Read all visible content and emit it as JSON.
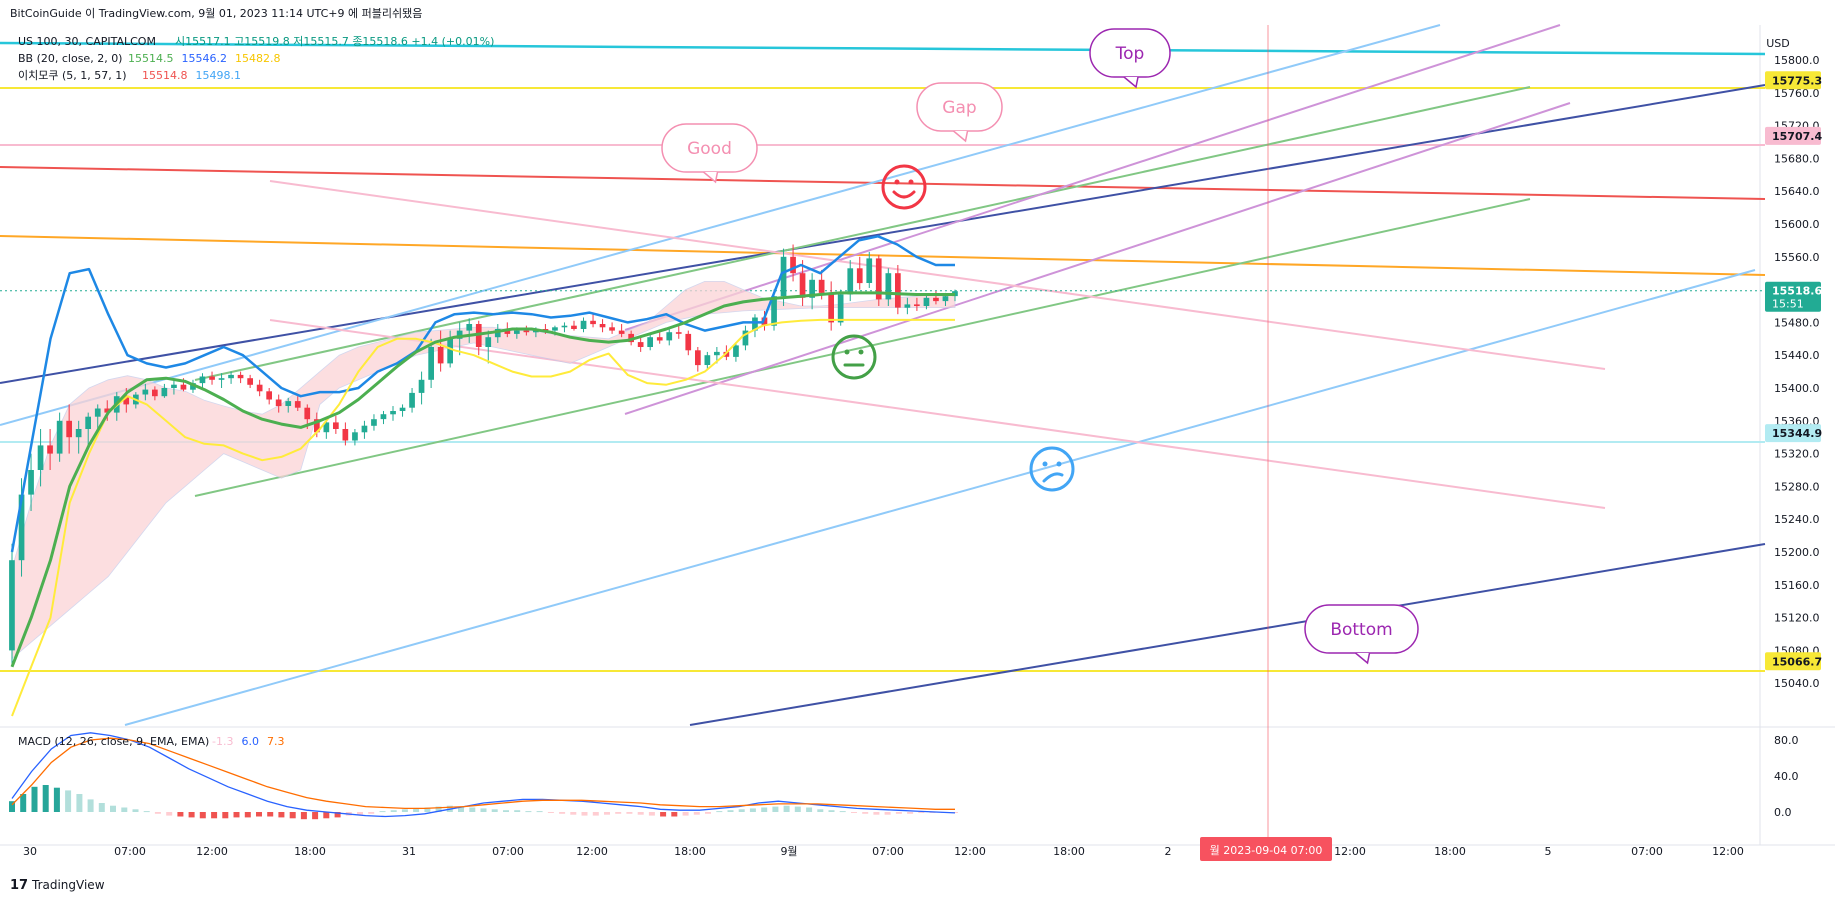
{
  "header": {
    "publish_line": "BitCoinGuide 이 TradingView.com, 9월 01, 2023 11:14 UTC+9 에 퍼블리쉬됐음"
  },
  "legend": {
    "symbol": "US 100, 30, CAPITALCOM",
    "ohlc": [
      {
        "label": "시",
        "value": "15517.1"
      },
      {
        "label": "고",
        "value": "15519.8"
      },
      {
        "label": "저",
        "value": "15515.7"
      },
      {
        "label": "종",
        "value": "15518.6"
      }
    ],
    "change": "+1.4 (+0.01%)",
    "bb_label": "BB (20, close, 2, 0)",
    "bb_values": [
      "15514.5",
      "15546.2",
      "15482.8"
    ],
    "ichimoku_label": "이치모쿠 (5, 1, 57, 1)",
    "ichimoku_values": [
      "15514.8",
      "15498.1"
    ],
    "macd_label": "MACD (12, 26, close, 9, EMA, EMA)",
    "macd_values": [
      "-1.3",
      "6.0",
      "7.3"
    ]
  },
  "price_axis": {
    "currency": "USD",
    "ticks": [
      "15800.0",
      "15760.0",
      "15720.0",
      "15680.0",
      "15640.0",
      "15600.0",
      "15560.0",
      "15520.0",
      "15480.0",
      "15440.0",
      "15400.0",
      "15360.0",
      "15320.0",
      "15280.0",
      "15240.0",
      "15200.0",
      "15160.0",
      "15120.0",
      "15080.0",
      "15040.0"
    ],
    "price_labels": [
      {
        "text": "15775.3",
        "bg": "#f7e836"
      },
      {
        "text": "15707.4",
        "bg": "#f8bbd0"
      },
      {
        "text": "15518.6",
        "sub": "15:51",
        "bg": "#22ab94"
      },
      {
        "text": "15344.9",
        "bg": "#b2ebf2"
      },
      {
        "text": "15066.7",
        "bg": "#f7e836"
      }
    ]
  },
  "macd_axis": {
    "ticks": [
      "80.0",
      "40.0",
      "0.0"
    ]
  },
  "time_axis": {
    "ticks": [
      "30",
      "07:00",
      "12:00",
      "18:00",
      "31",
      "07:00",
      "12:00",
      "18:00",
      "9월",
      "07:00",
      "12:00",
      "18:00",
      "2",
      "12:00",
      "18:00",
      "5",
      "07:00",
      "12:00"
    ],
    "cursor_label": "월 2023-09-04   07:00"
  },
  "callouts": {
    "top": "Top",
    "gap": "Gap",
    "good": "Good",
    "bottom": "Bottom"
  },
  "footer": {
    "brand": "TradingView"
  },
  "colors": {
    "up": "#22ab94",
    "down": "#f23645",
    "bb_basis": "#4caf50",
    "bb_upper": "#2962ff",
    "bb_lower": "#ffeb3b",
    "cloud": "#fbd3d6"
  },
  "chart_data": [
    {
      "type": "candlestick",
      "title": "US 100, 30, CAPITALCOM",
      "ylim": [
        15020,
        15830
      ],
      "ohlc": [
        [
          15080,
          15210,
          15060,
          15190
        ],
        [
          15190,
          15290,
          15170,
          15270
        ],
        [
          15270,
          15320,
          15250,
          15300
        ],
        [
          15300,
          15350,
          15280,
          15330
        ],
        [
          15330,
          15350,
          15300,
          15320
        ],
        [
          15320,
          15370,
          15310,
          15360
        ],
        [
          15360,
          15380,
          15320,
          15340
        ],
        [
          15340,
          15360,
          15320,
          15350
        ],
        [
          15350,
          15370,
          15330,
          15365
        ],
        [
          15365,
          15380,
          15350,
          15375
        ],
        [
          15375,
          15385,
          15360,
          15370
        ],
        [
          15370,
          15395,
          15360,
          15390
        ],
        [
          15390,
          15400,
          15370,
          15380
        ],
        [
          15380,
          15395,
          15375,
          15392
        ],
        [
          15392,
          15405,
          15385,
          15398
        ],
        [
          15398,
          15402,
          15385,
          15390
        ],
        [
          15390,
          15405,
          15388,
          15400
        ],
        [
          15400,
          15410,
          15392,
          15404
        ],
        [
          15404,
          15412,
          15396,
          15398
        ],
        [
          15398,
          15410,
          15394,
          15406
        ],
        [
          15406,
          15418,
          15400,
          15414
        ],
        [
          15414,
          15420,
          15404,
          15410
        ],
        [
          15410,
          15418,
          15400,
          15412
        ],
        [
          15412,
          15420,
          15405,
          15416
        ],
        [
          15416,
          15420,
          15406,
          15412
        ],
        [
          15412,
          15416,
          15400,
          15404
        ],
        [
          15404,
          15410,
          15390,
          15396
        ],
        [
          15396,
          15400,
          15380,
          15386
        ],
        [
          15386,
          15392,
          15370,
          15378
        ],
        [
          15378,
          15388,
          15370,
          15384
        ],
        [
          15384,
          15390,
          15372,
          15376
        ],
        [
          15376,
          15380,
          15350,
          15362
        ],
        [
          15362,
          15370,
          15340,
          15346
        ],
        [
          15346,
          15364,
          15338,
          15358
        ],
        [
          15358,
          15366,
          15344,
          15350
        ],
        [
          15350,
          15358,
          15330,
          15336
        ],
        [
          15336,
          15350,
          15330,
          15346
        ],
        [
          15346,
          15360,
          15338,
          15354
        ],
        [
          15354,
          15368,
          15348,
          15362
        ],
        [
          15362,
          15372,
          15356,
          15368
        ],
        [
          15368,
          15378,
          15360,
          15372
        ],
        [
          15372,
          15380,
          15365,
          15376
        ],
        [
          15376,
          15400,
          15370,
          15394
        ],
        [
          15394,
          15420,
          15380,
          15410
        ],
        [
          15410,
          15460,
          15400,
          15450
        ],
        [
          15450,
          15470,
          15420,
          15430
        ],
        [
          15430,
          15470,
          15425,
          15460
        ],
        [
          15460,
          15480,
          15440,
          15470
        ],
        [
          15470,
          15485,
          15455,
          15478
        ],
        [
          15478,
          15482,
          15440,
          15450
        ],
        [
          15450,
          15470,
          15430,
          15462
        ],
        [
          15462,
          15478,
          15455,
          15472
        ],
        [
          15472,
          15480,
          15462,
          15466
        ],
        [
          15466,
          15474,
          15460,
          15470
        ],
        [
          15470,
          15476,
          15464,
          15468
        ],
        [
          15468,
          15474,
          15462,
          15472
        ],
        [
          15472,
          15478,
          15466,
          15470
        ],
        [
          15470,
          15476,
          15464,
          15474
        ],
        [
          15474,
          15480,
          15468,
          15476
        ],
        [
          15476,
          15482,
          15470,
          15472
        ],
        [
          15472,
          15486,
          15468,
          15482
        ],
        [
          15482,
          15490,
          15474,
          15478
        ],
        [
          15478,
          15484,
          15468,
          15474
        ],
        [
          15474,
          15480,
          15466,
          15470
        ],
        [
          15470,
          15478,
          15462,
          15466
        ],
        [
          15466,
          15470,
          15452,
          15456
        ],
        [
          15456,
          15462,
          15444,
          15450
        ],
        [
          15450,
          15466,
          15446,
          15462
        ],
        [
          15462,
          15470,
          15454,
          15458
        ],
        [
          15458,
          15474,
          15452,
          15468
        ],
        [
          15468,
          15476,
          15460,
          15466
        ],
        [
          15466,
          15470,
          15440,
          15446
        ],
        [
          15446,
          15450,
          15420,
          15428
        ],
        [
          15428,
          15444,
          15422,
          15440
        ],
        [
          15440,
          15450,
          15430,
          15444
        ],
        [
          15444,
          15452,
          15434,
          15438
        ],
        [
          15438,
          15456,
          15432,
          15452
        ],
        [
          15452,
          15476,
          15446,
          15470
        ],
        [
          15470,
          15490,
          15462,
          15486
        ],
        [
          15486,
          15494,
          15470,
          15476
        ],
        [
          15476,
          15520,
          15470,
          15512
        ],
        [
          15512,
          15570,
          15500,
          15560
        ],
        [
          15560,
          15575,
          15530,
          15540
        ],
        [
          15540,
          15556,
          15500,
          15510
        ],
        [
          15510,
          15540,
          15496,
          15532
        ],
        [
          15532,
          15544,
          15508,
          15516
        ],
        [
          15516,
          15530,
          15470,
          15480
        ],
        [
          15480,
          15520,
          15476,
          15514
        ],
        [
          15514,
          15556,
          15506,
          15546
        ],
        [
          15546,
          15560,
          15520,
          15528
        ],
        [
          15528,
          15566,
          15522,
          15558
        ],
        [
          15558,
          15562,
          15500,
          15508
        ],
        [
          15508,
          15546,
          15500,
          15540
        ],
        [
          15540,
          15550,
          15490,
          15498
        ],
        [
          15498,
          15510,
          15490,
          15502
        ],
        [
          15502,
          15510,
          15494,
          15500
        ],
        [
          15500,
          15514,
          15496,
          15510
        ],
        [
          15510,
          15518,
          15502,
          15506
        ],
        [
          15506,
          15516,
          15500,
          15512
        ],
        [
          15512,
          15520,
          15506,
          15518
        ]
      ],
      "bb_upper": [
        15200,
        15330,
        15460,
        15540,
        15545,
        15490,
        15440,
        15430,
        15425,
        15430,
        15440,
        15450,
        15440,
        15420,
        15400,
        15390,
        15395,
        15395,
        15400,
        15420,
        15430,
        15445,
        15480,
        15490,
        15492,
        15490,
        15492,
        15490,
        15486,
        15488,
        15492,
        15486,
        15480,
        15484,
        15490,
        15478,
        15470,
        15475,
        15480,
        15480,
        15540,
        15550,
        15540,
        15560,
        15580,
        15585,
        15575,
        15560,
        15550,
        15550
      ],
      "bb_basis": [
        15060,
        15120,
        15190,
        15280,
        15330,
        15370,
        15395,
        15410,
        15412,
        15408,
        15398,
        15386,
        15372,
        15362,
        15356,
        15352,
        15360,
        15370,
        15386,
        15406,
        15426,
        15444,
        15456,
        15462,
        15465,
        15468,
        15472,
        15472,
        15468,
        15462,
        15458,
        15456,
        15458,
        15465,
        15472,
        15480,
        15490,
        15500,
        15505,
        15508,
        15510,
        15512,
        15514,
        15516,
        15516,
        15516,
        15515,
        15514,
        15514,
        15514
      ],
      "bb_lower": [
        15000,
        15060,
        15120,
        15260,
        15320,
        15370,
        15390,
        15380,
        15360,
        15340,
        15332,
        15330,
        15320,
        15312,
        15316,
        15326,
        15350,
        15380,
        15420,
        15450,
        15460,
        15460,
        15455,
        15446,
        15440,
        15430,
        15420,
        15414,
        15414,
        15420,
        15434,
        15442,
        15416,
        15406,
        15404,
        15410,
        15420,
        15440,
        15464,
        15476,
        15480,
        15482,
        15483,
        15483,
        15483,
        15483,
        15483,
        15483,
        15483,
        15483
      ],
      "ichimoku_cloud_top": [
        15180,
        15260,
        15330,
        15380,
        15400,
        15410,
        15415,
        15410,
        15400,
        15396,
        15385,
        15378,
        15372,
        15368,
        15380,
        15400,
        15420,
        15440,
        15450,
        15456,
        15462,
        15468,
        15470,
        15472,
        15474,
        15474,
        15470,
        15470,
        15466,
        15464,
        15462,
        15460,
        15470,
        15480,
        15500,
        15520,
        15530,
        15530,
        15520,
        15510,
        15505,
        15500,
        15500,
        15502,
        15505,
        15508,
        15510,
        15512,
        15514,
        15515
      ],
      "ichimoku_cloud_bottom": [
        15070,
        15090,
        15110,
        15130,
        15150,
        15170,
        15200,
        15230,
        15260,
        15280,
        15300,
        15320,
        15310,
        15300,
        15290,
        15300,
        15380,
        15400,
        15410,
        15420,
        15430,
        15440,
        15445,
        15450,
        15455,
        15450,
        15445,
        15440,
        15435,
        15430,
        15440,
        15450,
        15460,
        15470,
        15480,
        15485,
        15490,
        15492,
        15494,
        15495,
        15496,
        15497,
        15498,
        15498,
        15498,
        15498,
        15498,
        15498,
        15498,
        15498
      ],
      "macd_histogram": [
        12,
        20,
        28,
        30,
        27,
        24,
        20,
        14,
        10,
        7,
        5,
        3,
        1,
        -2,
        -4,
        -5,
        -6,
        -7,
        -7,
        -7,
        -6,
        -6,
        -5,
        -5,
        -6,
        -7,
        -8,
        -8,
        -7,
        -6,
        -4,
        -3,
        -2,
        1,
        2,
        3,
        4,
        5,
        6,
        7,
        6,
        5,
        4,
        3,
        2,
        2,
        1,
        1,
        -1,
        -2,
        -3,
        -4,
        -4,
        -3,
        -2,
        -2,
        -3,
        -4,
        -5,
        -5,
        -4,
        -3,
        -2,
        1,
        2,
        3,
        4,
        5,
        6,
        7,
        6,
        5,
        3,
        2,
        1,
        -1,
        -2,
        -3,
        -3,
        -2,
        -2,
        -1,
        -1,
        -1,
        -1
      ],
      "macd_line": [
        15,
        45,
        70,
        85,
        88,
        85,
        80,
        72,
        60,
        48,
        38,
        28,
        20,
        12,
        6,
        2,
        0,
        -2,
        -4,
        -5,
        -4,
        -2,
        2,
        6,
        10,
        12,
        14,
        14,
        13,
        12,
        10,
        8,
        6,
        3,
        2,
        2,
        4,
        6,
        10,
        12,
        10,
        8,
        6,
        4,
        3,
        2,
        1,
        0,
        -1
      ],
      "signal_line": [
        8,
        30,
        55,
        72,
        80,
        82,
        80,
        76,
        68,
        60,
        52,
        44,
        36,
        28,
        22,
        16,
        12,
        9,
        6,
        5,
        4,
        4,
        5,
        6,
        8,
        10,
        12,
        13,
        13,
        13,
        12,
        11,
        10,
        8,
        7,
        6,
        6,
        7,
        8,
        9,
        9,
        9,
        8,
        7,
        6,
        5,
        4,
        3,
        3
      ]
    }
  ]
}
